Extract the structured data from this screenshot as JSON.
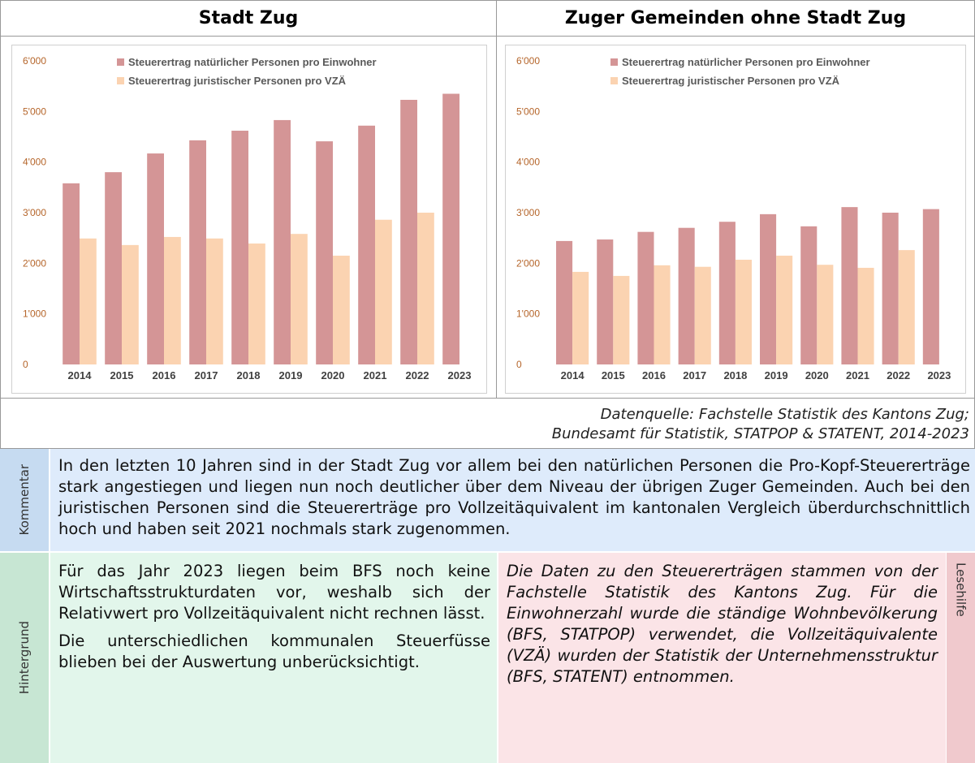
{
  "header": {
    "left": "Stadt Zug",
    "right": "Zuger Gemeinden ohne Stadt Zug"
  },
  "chart_data": [
    {
      "type": "bar",
      "categories": [
        "2014",
        "2015",
        "2016",
        "2017",
        "2018",
        "2019",
        "2020",
        "2021",
        "2022",
        "2023"
      ],
      "series": [
        {
          "name": "Steuerertrag natürlicher Personen pro Einwohner",
          "color": "#d49596",
          "values": [
            3580,
            3800,
            4170,
            4430,
            4620,
            4830,
            4410,
            4720,
            5230,
            5350
          ]
        },
        {
          "name": "Steuerertrag juristischer Personen pro VZÄ",
          "color": "#fbd3b1",
          "values": [
            2490,
            2360,
            2520,
            2490,
            2390,
            2580,
            2150,
            2860,
            3000,
            null
          ]
        }
      ],
      "ylim": [
        0,
        6000
      ],
      "yticks": [
        0,
        {
          "value": 1000,
          "label": "1'000"
        },
        {
          "value": 2000,
          "label": "2'000"
        },
        {
          "value": 3000,
          "label": "3'000"
        },
        {
          "value": 4000,
          "label": "4'000"
        },
        {
          "value": 5000,
          "label": "5'000"
        },
        {
          "value": 6000,
          "label": "6'000"
        }
      ],
      "grid": false
    },
    {
      "type": "bar",
      "categories": [
        "2014",
        "2015",
        "2016",
        "2017",
        "2018",
        "2019",
        "2020",
        "2021",
        "2022",
        "2023"
      ],
      "series": [
        {
          "name": "Steuerertrag natürlicher Personen pro Einwohner",
          "color": "#d49596",
          "values": [
            2440,
            2470,
            2620,
            2700,
            2820,
            2970,
            2730,
            3110,
            3000,
            3070
          ]
        },
        {
          "name": "Steuerertrag juristischer Personen pro VZÄ",
          "color": "#fbd3b1",
          "values": [
            1830,
            1750,
            1960,
            1930,
            2070,
            2150,
            1970,
            1910,
            2260,
            null
          ]
        }
      ],
      "ylim": [
        0,
        6000
      ],
      "yticks": [
        0,
        {
          "value": 1000,
          "label": "1'000"
        },
        {
          "value": 2000,
          "label": "2'000"
        },
        {
          "value": 3000,
          "label": "3'000"
        },
        {
          "value": 4000,
          "label": "4'000"
        },
        {
          "value": 5000,
          "label": "5'000"
        },
        {
          "value": 6000,
          "label": "6'000"
        }
      ],
      "grid": false
    }
  ],
  "source": [
    "Datenquelle: Fachstelle Statistik des Kantons Zug;",
    "Bundesamt für Statistik, STATPOP & STATENT, 2014-2023"
  ],
  "kommentar": {
    "label": "Kommentar",
    "text": "In den letzten 10 Jahren sind in der Stadt Zug vor allem bei den natürlichen Personen die Pro-Kopf-Steuererträge stark angestiegen und liegen nun noch deutlicher über dem Niveau der übrigen Zuger Gemeinden. Auch bei den juristischen Personen sind die Steuererträge pro Vollzeitäquivalent im kantonalen Vergleich überdurchschnittlich hoch und haben seit 2021 nochmals stark zugenommen."
  },
  "hintergrund": {
    "label": "Hintergrund",
    "paragraphs": [
      "Für das Jahr 2023 liegen beim BFS noch keine Wirtschaftsstrukturdaten vor, weshalb sich der Relativwert pro Vollzeitäquivalent nicht rechnen lässt.",
      "Die unterschiedlichen kommunalen Steuerfüsse blieben bei der Auswertung unberücksichtigt."
    ]
  },
  "lesehilfe": {
    "label": "Lesehilfe",
    "text": "Die Daten zu den Steuererträgen stammen von der Fachstelle Statistik des Kantons Zug. Für die Einwohnerzahl wurde die ständige Wohnbevölkerung (BFS, STATPOP) verwendet, die Vollzeitäquivalente (VZÄ) wurden der Statistik der Unternehmensstruktur (BFS, STATENT) entnommen."
  }
}
